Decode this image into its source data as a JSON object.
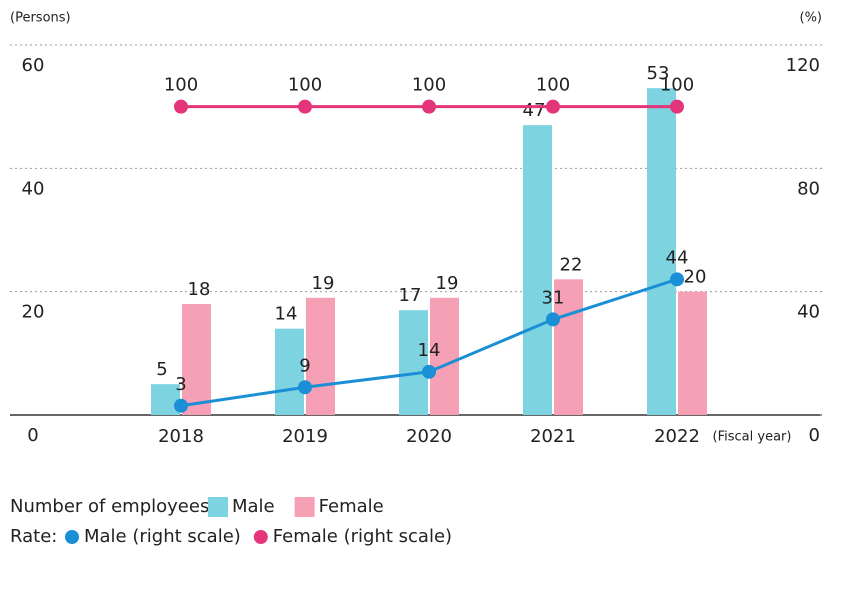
{
  "chart_data": {
    "type": "bar-line",
    "ylabel": "(Persons)",
    "y2label": "(%)",
    "xlabel": "(Fiscal year)",
    "categories": [
      "2018",
      "2019",
      "2020",
      "2021",
      "2022"
    ],
    "series": [
      {
        "name": "Male",
        "type": "bar",
        "color": "#7dd3e0",
        "values": [
          5,
          14,
          17,
          47,
          53
        ]
      },
      {
        "name": "Female",
        "type": "bar",
        "color": "#f5a0b4",
        "values": [
          18,
          19,
          19,
          22,
          20
        ]
      },
      {
        "name": "Male (right scale)",
        "type": "line",
        "axis": "y2",
        "color": "#1a8fd6",
        "values": [
          3,
          9,
          14,
          31,
          44
        ]
      },
      {
        "name": "Female (right scale)",
        "type": "line",
        "axis": "y2",
        "color": "#e5357a",
        "values": [
          100,
          100,
          100,
          100,
          100
        ]
      }
    ],
    "legend_titles": [
      "Number of employees:",
      "Rate:"
    ],
    "ylim": [
      0,
      60
    ],
    "yticks": [
      0,
      20,
      40,
      60
    ],
    "y2lim": [
      0,
      120
    ],
    "y2ticks": [
      0,
      40,
      80,
      120
    ],
    "grid": true
  }
}
